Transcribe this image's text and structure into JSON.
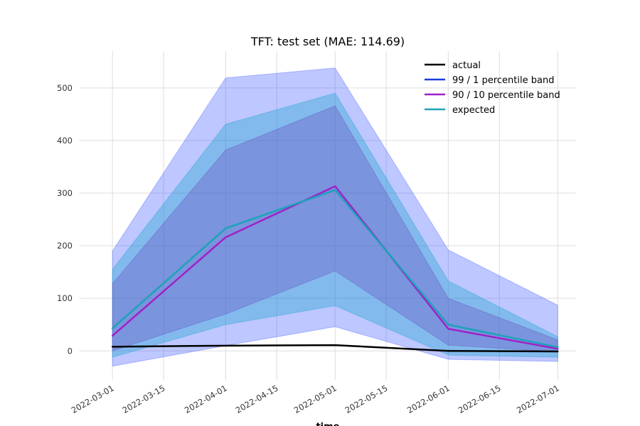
{
  "chart_data": {
    "type": "line",
    "title": "TFT: test set (MAE: 114.69)",
    "xlabel": "time",
    "ylabel": "",
    "x": [
      "2022-03-01",
      "2022-04-01",
      "2022-05-01",
      "2022-06-01",
      "2022-07-01"
    ],
    "x_ticks": [
      "2022-03-01",
      "2022-03-15",
      "2022-04-01",
      "2022-04-15",
      "2022-05-01",
      "2022-05-15",
      "2022-06-01",
      "2022-06-15",
      "2022-07-01"
    ],
    "y_ticks": [
      0,
      100,
      200,
      300,
      400,
      500
    ],
    "xlim": [
      "2022-02-20",
      "2022-07-06"
    ],
    "ylim": [
      -55,
      570
    ],
    "grid": true,
    "legend_position": "top-right",
    "bands": [
      {
        "name": "99 / 1 percentile band",
        "color": "#1a3cff",
        "lower": [
          -29,
          10,
          46,
          -16,
          -20
        ],
        "upper": [
          190,
          519,
          538,
          192,
          87
        ]
      },
      {
        "name": "",
        "color": "#1fa5d0",
        "lower": [
          -12,
          50,
          86,
          -8,
          -12
        ],
        "upper": [
          155,
          431,
          490,
          133,
          27
        ]
      },
      {
        "name": "90 / 10 percentile band",
        "color": "#6a3dbb",
        "lower": [
          0,
          70,
          152,
          11,
          -2
        ],
        "upper": [
          128,
          382,
          466,
          100,
          21
        ]
      }
    ],
    "series": [
      {
        "name": "actual",
        "color": "#000000",
        "values": [
          8,
          10,
          11,
          0,
          -1
        ]
      },
      {
        "name": "90 / 10 percentile band",
        "color": "#a020c8",
        "values": [
          29,
          216,
          313,
          42,
          4
        ]
      },
      {
        "name": "expected",
        "color": "#1ba3b8",
        "values": [
          43,
          233,
          306,
          50,
          7
        ]
      }
    ],
    "legend": [
      {
        "label": "actual",
        "color": "#000000"
      },
      {
        "label": "99 / 1 percentile band",
        "color": "#1a3cdf"
      },
      {
        "label": "90 / 10 percentile band",
        "color": "#a020c8"
      },
      {
        "label": "expected",
        "color": "#1ba3b8"
      }
    ]
  }
}
